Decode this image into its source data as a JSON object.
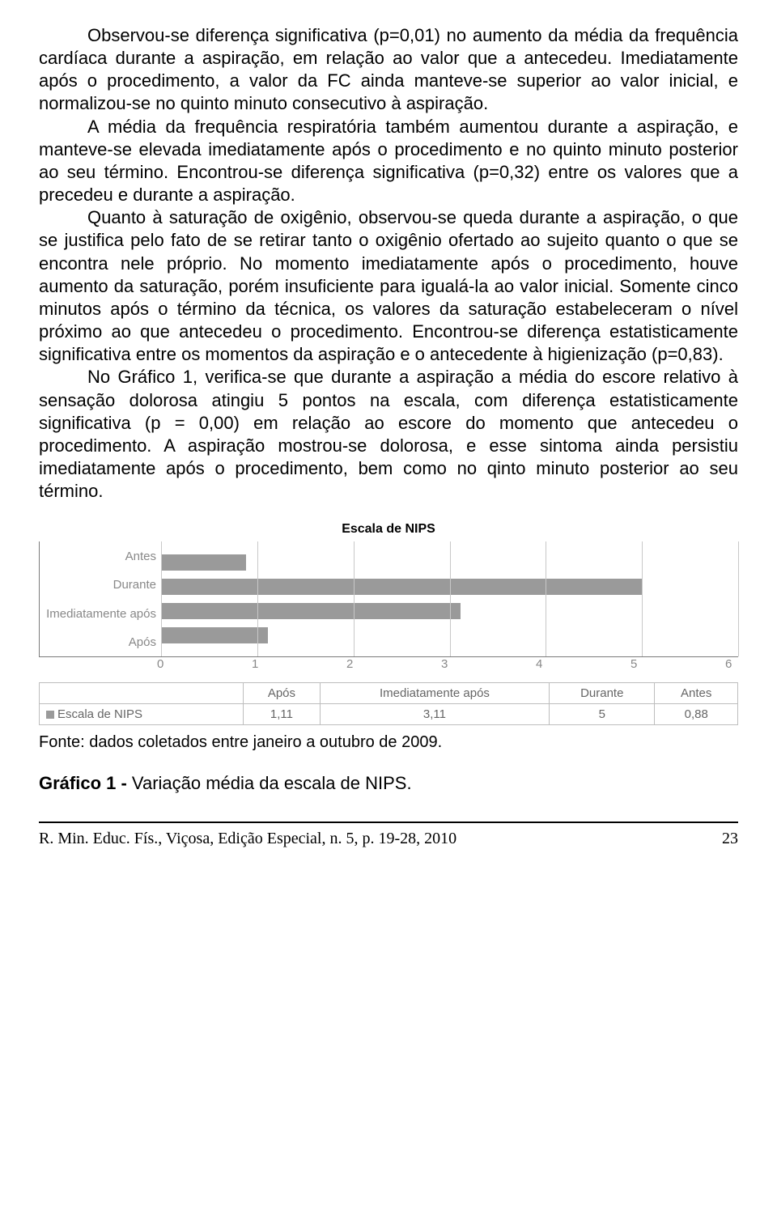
{
  "paragraphs": {
    "p1": "Observou-se diferença significativa (p=0,01) no aumento da média da frequência cardíaca durante a aspiração, em relação ao valor que a antecedeu. Imediatamente após o procedimento, a valor da FC ainda manteve-se superior ao valor inicial, e normalizou-se no quinto minuto consecutivo à aspiração.",
    "p2": "A média da frequência respiratória também aumentou durante a aspiração, e manteve-se elevada imediatamente após o procedimento e no quinto minuto posterior ao seu término. Encontrou-se diferença significativa (p=0,32) entre os valores que a precedeu e durante a aspiração.",
    "p3": "Quanto à saturação de oxigênio, observou-se queda durante a aspiração, o que se justifica pelo fato de se retirar tanto o oxigênio ofertado ao sujeito quanto o que se encontra nele próprio. No momento imediatamente após o procedimento, houve aumento da saturação, porém insuficiente para igualá-la ao valor inicial. Somente cinco minutos após o término da técnica, os valores da saturação estabeleceram o nível próximo ao que antecedeu o procedimento. Encontrou-se diferença estatisticamente significativa entre os momentos da aspiração e o antecedente à higienização (p=0,83).",
    "p4": "No Gráfico 1, verifica-se que durante a aspiração a média do escore relativo à sensação dolorosa atingiu 5 pontos na escala, com diferença estatisticamente significativa (p = 0,00) em relação ao escore do momento que antecedeu o procedimento. A aspiração mostrou-se dolorosa, e esse sintoma ainda persistiu imediatamente após o procedimento, bem como no qinto minuto posterior ao seu término."
  },
  "chart": {
    "type": "bar",
    "title": "Escala de NIPS",
    "bar_color": "#9a9a9a",
    "grid_color": "#c8c8c8",
    "axis_color": "#7a7a7a",
    "label_color": "#888888",
    "x_min": 0,
    "x_max": 6,
    "x_tick_step": 1,
    "x_ticks": [
      "0",
      "1",
      "2",
      "3",
      "4",
      "5",
      "6"
    ],
    "categories": [
      "Antes",
      "Durante",
      "Imediatamente após",
      "Após"
    ],
    "values": [
      0.88,
      5,
      3.11,
      1.11
    ],
    "legend_series_label": "Escala de NIPS",
    "legend_columns": [
      "Após",
      "Imediatamente após",
      "Durante",
      "Antes"
    ],
    "legend_values": [
      "1,11",
      "3,11",
      "5",
      "0,88"
    ]
  },
  "fonte": "Fonte: dados coletados entre janeiro a outubro de 2009.",
  "caption": {
    "bold": "Gráfico 1 - ",
    "rest": "Variação média da escala de NIPS."
  },
  "footer": {
    "citation": "R. Min. Educ. Fís., Viçosa, Edição Especial, n. 5, p. 19-28, 2010",
    "page": "23"
  }
}
